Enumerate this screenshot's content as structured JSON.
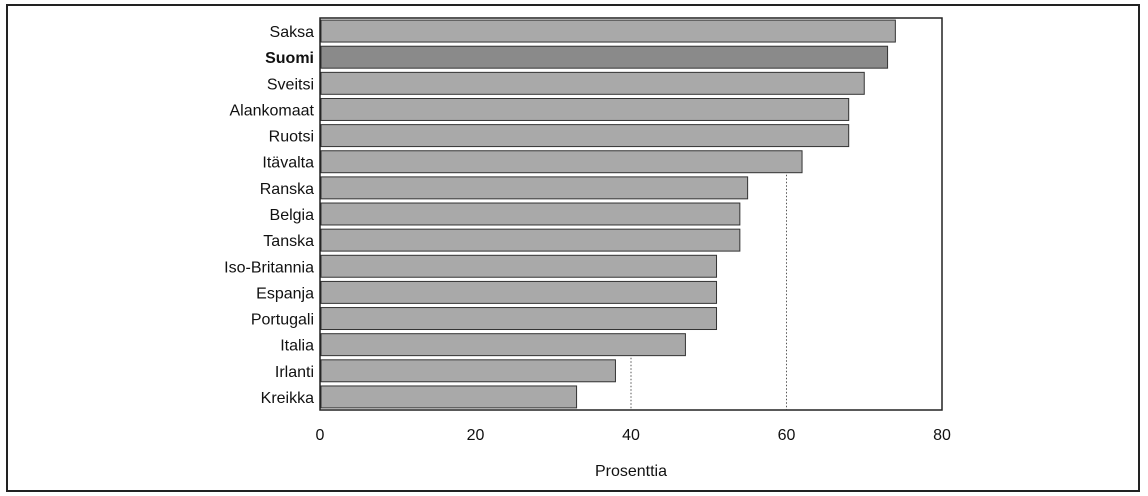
{
  "chart_data": {
    "type": "bar",
    "orientation": "horizontal",
    "categories": [
      "Saksa",
      "Suomi",
      "Sveitsi",
      "Alankomaat",
      "Ruotsi",
      "Itävalta",
      "Ranska",
      "Belgia",
      "Tanska",
      "Iso-Britannia",
      "Espanja",
      "Portugali",
      "Italia",
      "Irlanti",
      "Kreikka"
    ],
    "highlight_category": "Suomi",
    "values": [
      74,
      73,
      70,
      68,
      68,
      62,
      55,
      54,
      54,
      51,
      51,
      51,
      47,
      38,
      33
    ],
    "xlabel": "Prosenttia",
    "xlim": [
      0,
      80
    ],
    "xticks": [
      "0",
      "20",
      "40",
      "60",
      "80"
    ],
    "reference_lines": [
      40,
      60
    ],
    "grid": false,
    "colors": {
      "bar": "#a9a9a9",
      "bar_highlight": "#8a8a8a",
      "bar_border": "#333333",
      "axis": "#222222"
    }
  }
}
